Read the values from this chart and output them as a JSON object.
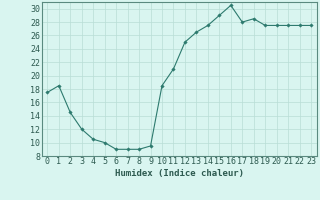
{
  "x": [
    0,
    1,
    2,
    3,
    4,
    5,
    6,
    7,
    8,
    9,
    10,
    11,
    12,
    13,
    14,
    15,
    16,
    17,
    18,
    19,
    20,
    21,
    22,
    23
  ],
  "y": [
    17.5,
    18.5,
    14.5,
    12.0,
    10.5,
    10.0,
    9.0,
    9.0,
    9.0,
    9.5,
    18.5,
    21.0,
    25.0,
    26.5,
    27.5,
    29.0,
    30.5,
    28.0,
    28.5,
    27.5,
    27.5,
    27.5,
    27.5,
    27.5
  ],
  "line_color": "#2d7a6e",
  "marker": "D",
  "marker_size": 1.8,
  "line_width": 0.8,
  "bg_color": "#d9f5f0",
  "grid_color": "#b8ddd6",
  "xlabel": "Humidex (Indice chaleur)",
  "xlim": [
    -0.5,
    23.5
  ],
  "ylim": [
    8,
    31
  ],
  "yticks": [
    8,
    10,
    12,
    14,
    16,
    18,
    20,
    22,
    24,
    26,
    28,
    30
  ],
  "xticks": [
    0,
    1,
    2,
    3,
    4,
    5,
    6,
    7,
    8,
    9,
    10,
    11,
    12,
    13,
    14,
    15,
    16,
    17,
    18,
    19,
    20,
    21,
    22,
    23
  ],
  "xlabel_fontsize": 6.5,
  "tick_fontsize": 6.0,
  "tick_color": "#2d5a50",
  "axis_color": "#2d5a50",
  "spine_color": "#5a8a80"
}
